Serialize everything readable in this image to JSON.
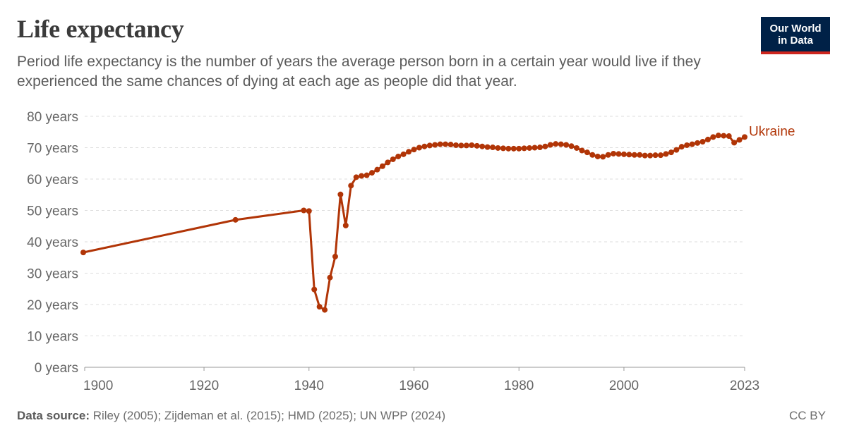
{
  "title": "Life expectancy",
  "subtitle": "Period life expectancy is the number of years the average person born in a certain year would live if they experienced the same chances of dying at each age as people did that year.",
  "logo": {
    "line1": "Our World",
    "line2": "in Data"
  },
  "footer": {
    "source_label": "Data source:",
    "source_text": "Riley (2005); Zijdeman et al. (2015); HMD (2025); UN WPP (2024)",
    "license": "CC BY"
  },
  "colors": {
    "series": "#b13507",
    "grid": "#dddddd",
    "axis_text": "#666666",
    "title": "#3b3b3b"
  },
  "chart_data": {
    "type": "line",
    "title": "Life expectancy",
    "xlabel": "",
    "ylabel": "",
    "xlim": [
      1900,
      2023
    ],
    "ylim": [
      0,
      80
    ],
    "x_ticks": [
      1900,
      1920,
      1940,
      1960,
      1980,
      2000,
      2023
    ],
    "y_ticks": [
      0,
      10,
      20,
      30,
      40,
      50,
      60,
      70,
      80
    ],
    "y_tick_suffix": " years",
    "grid": "horizontal dashed",
    "series": [
      {
        "name": "Ukraine",
        "x": [
          1897,
          1926,
          1939,
          1940,
          1941,
          1942,
          1943,
          1944,
          1945,
          1946,
          1947,
          1948,
          1949,
          1950,
          1951,
          1952,
          1953,
          1954,
          1955,
          1956,
          1957,
          1958,
          1959,
          1960,
          1961,
          1962,
          1963,
          1964,
          1965,
          1966,
          1967,
          1968,
          1969,
          1970,
          1971,
          1972,
          1973,
          1974,
          1975,
          1976,
          1977,
          1978,
          1979,
          1980,
          1981,
          1982,
          1983,
          1984,
          1985,
          1986,
          1987,
          1988,
          1989,
          1990,
          1991,
          1992,
          1993,
          1994,
          1995,
          1996,
          1997,
          1998,
          1999,
          2000,
          2001,
          2002,
          2003,
          2004,
          2005,
          2006,
          2007,
          2008,
          2009,
          2010,
          2011,
          2012,
          2013,
          2014,
          2015,
          2016,
          2017,
          2018,
          2019,
          2020,
          2021,
          2022,
          2023
        ],
        "values": [
          36.6,
          47.0,
          50.0,
          49.8,
          24.8,
          19.3,
          18.3,
          28.6,
          35.3,
          55.1,
          45.2,
          57.9,
          60.6,
          61.0,
          61.2,
          62.0,
          63.0,
          64.1,
          65.3,
          66.3,
          67.2,
          67.9,
          68.7,
          69.4,
          70.0,
          70.4,
          70.7,
          70.9,
          71.1,
          71.1,
          71.0,
          70.8,
          70.7,
          70.7,
          70.8,
          70.6,
          70.4,
          70.2,
          70.1,
          69.9,
          69.8,
          69.7,
          69.7,
          69.7,
          69.8,
          69.9,
          70.0,
          70.1,
          70.4,
          70.9,
          71.2,
          71.1,
          70.9,
          70.5,
          69.9,
          69.1,
          68.5,
          67.7,
          67.2,
          67.1,
          67.7,
          68.1,
          68.0,
          67.9,
          67.8,
          67.7,
          67.7,
          67.5,
          67.5,
          67.6,
          67.6,
          68.0,
          68.5,
          69.3,
          70.3,
          70.8,
          71.1,
          71.5,
          71.9,
          72.6,
          73.4,
          73.9,
          73.8,
          73.7,
          71.6,
          72.5,
          73.4
        ]
      }
    ]
  }
}
